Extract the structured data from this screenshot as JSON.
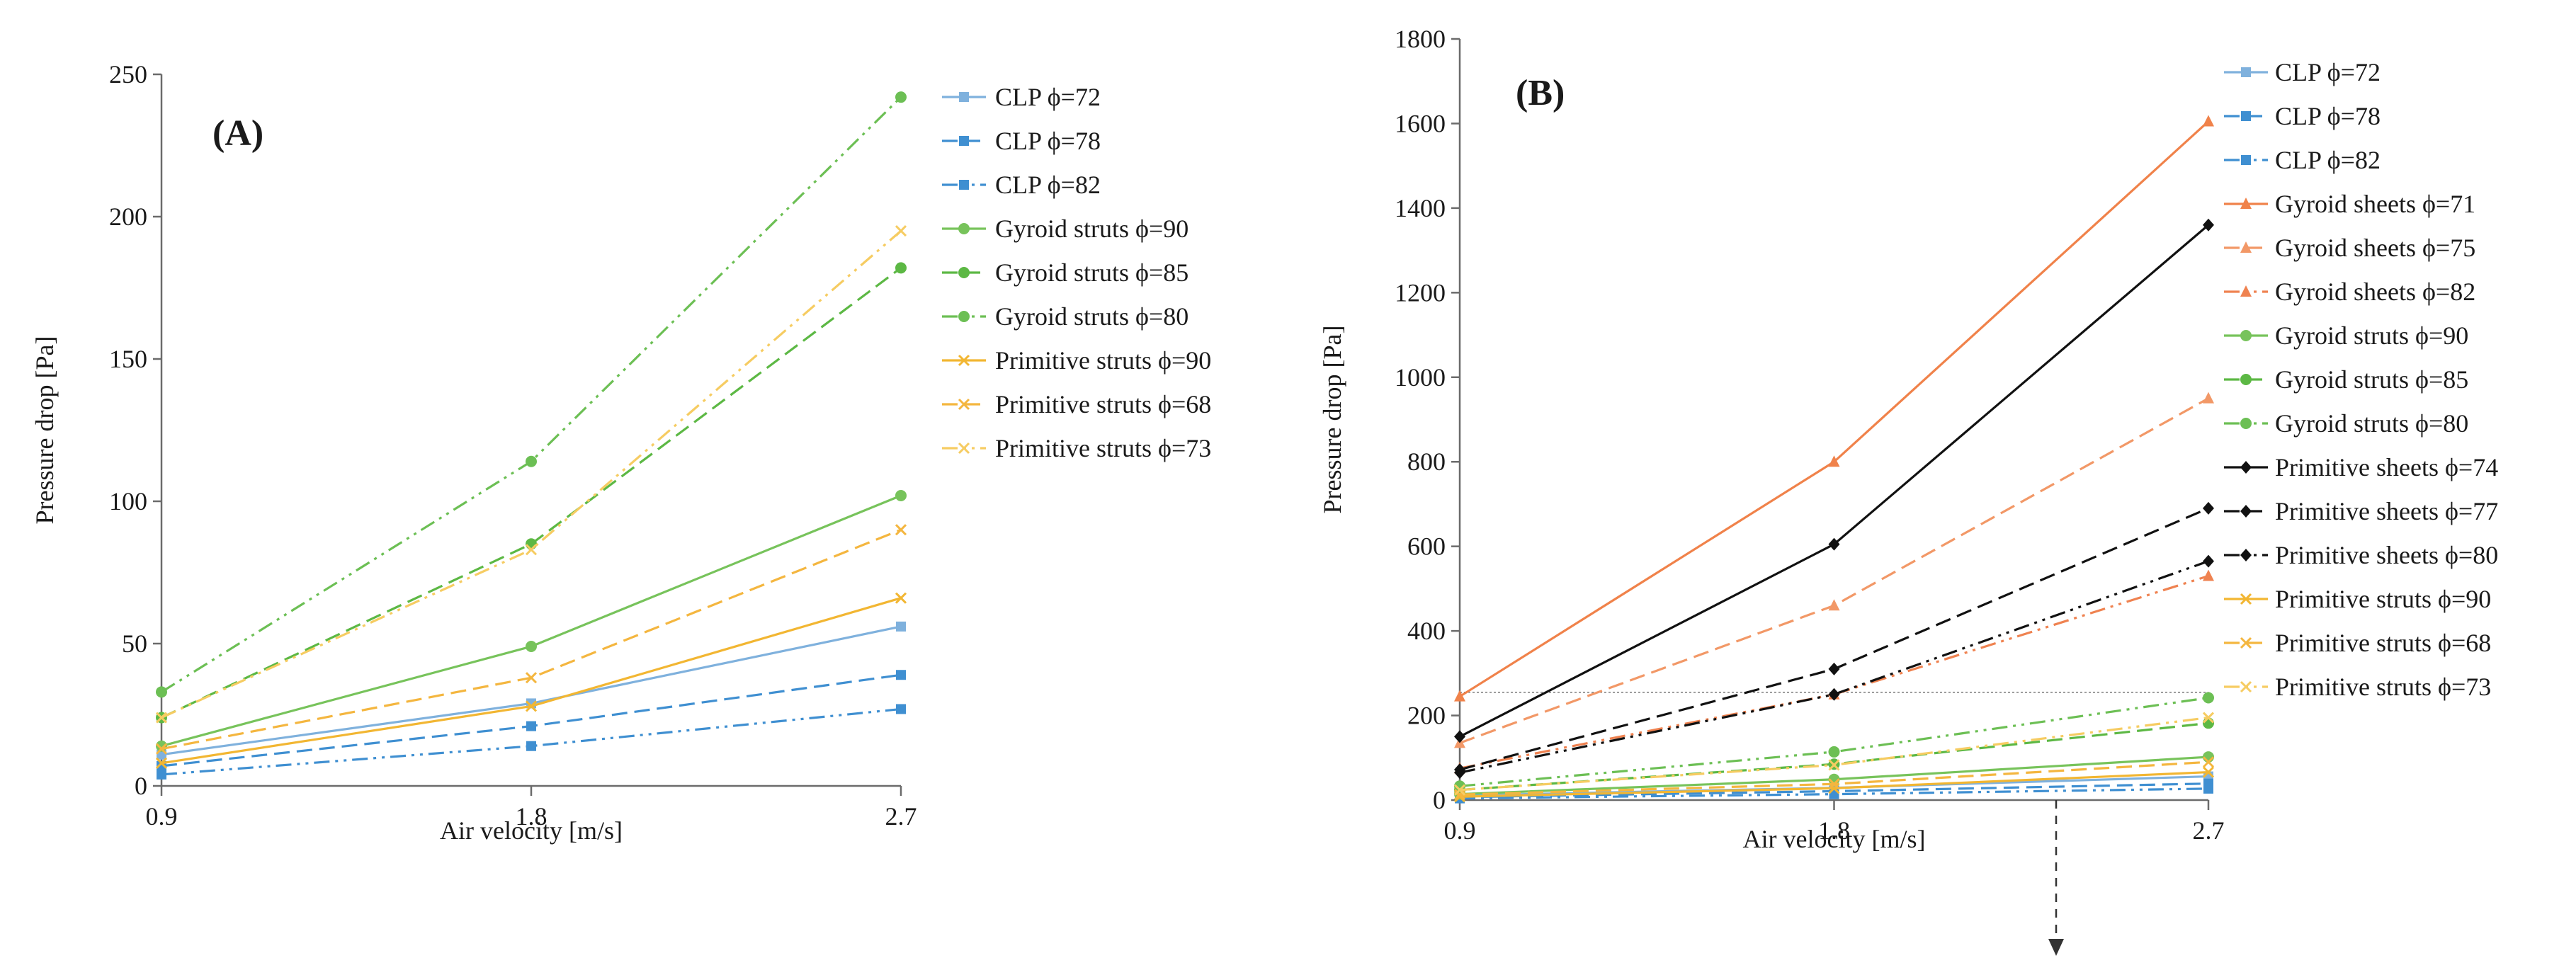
{
  "chart_data": [
    {
      "panel": "(A)",
      "type": "line",
      "xlabel": "Air velocity [m/s]",
      "ylabel": "Pressure drop [Pa]",
      "x": [
        0.9,
        1.8,
        2.7
      ],
      "x_ticks": [
        "0.9",
        "1.8",
        "2.7"
      ],
      "ylim": [
        0,
        250
      ],
      "y_ticks": [
        0,
        50,
        100,
        150,
        200,
        250
      ],
      "legend_position": "right",
      "series": [
        {
          "name": "CLP ϕ=72",
          "values": [
            11,
            29,
            56
          ],
          "color": "#7fb1dd",
          "dash": "solid",
          "marker": "square"
        },
        {
          "name": "CLP ϕ=78",
          "values": [
            7,
            21,
            39
          ],
          "color": "#3f8fd1",
          "dash": "dashed",
          "marker": "square"
        },
        {
          "name": "CLP ϕ=82",
          "values": [
            4,
            14,
            27
          ],
          "color": "#3f8fd1",
          "dash": "dashdotdot",
          "marker": "square"
        },
        {
          "name": "Gyroid struts ϕ=90",
          "values": [
            14,
            49,
            102
          ],
          "color": "#77c35b",
          "dash": "solid",
          "marker": "circle"
        },
        {
          "name": "Gyroid struts ϕ=85",
          "values": [
            24,
            85,
            182
          ],
          "color": "#5cb844",
          "dash": "dashed",
          "marker": "circle"
        },
        {
          "name": "Gyroid struts ϕ=80",
          "values": [
            33,
            114,
            242
          ],
          "color": "#6cbf54",
          "dash": "dashdotdot",
          "marker": "circle"
        },
        {
          "name": "Primitive struts ϕ=90",
          "values": [
            8,
            28,
            66
          ],
          "color": "#f2b632",
          "dash": "solid",
          "marker": "x"
        },
        {
          "name": "Primitive struts ϕ=68",
          "values": [
            13,
            38,
            90
          ],
          "color": "#f4b63f",
          "dash": "dashed",
          "marker": "x"
        },
        {
          "name": "Primitive struts ϕ=73",
          "values": [
            24,
            83,
            195
          ],
          "color": "#f6cc62",
          "dash": "dashdotdot",
          "marker": "x"
        }
      ]
    },
    {
      "panel": "(B)",
      "type": "line",
      "xlabel": "Air velocity [m/s]",
      "ylabel": "Pressure drop [Pa]",
      "x": [
        0.9,
        1.8,
        2.7
      ],
      "x_ticks": [
        "0.9",
        "1.8",
        "2.7"
      ],
      "ylim": [
        0,
        1800
      ],
      "y_ticks": [
        0,
        200,
        400,
        600,
        800,
        1000,
        1200,
        1400,
        1600,
        1800
      ],
      "reference_line_y": 255,
      "legend_position": "right",
      "series": [
        {
          "name": "CLP ϕ=72",
          "values": [
            11,
            29,
            56
          ],
          "color": "#7fb1dd",
          "dash": "solid",
          "marker": "square"
        },
        {
          "name": "CLP ϕ=78",
          "values": [
            7,
            21,
            39
          ],
          "color": "#3f8fd1",
          "dash": "dashed",
          "marker": "square"
        },
        {
          "name": "CLP ϕ=82",
          "values": [
            4,
            14,
            27
          ],
          "color": "#3f8fd1",
          "dash": "dashdotdot",
          "marker": "square"
        },
        {
          "name": "Gyroid sheets ϕ=71",
          "values": [
            245,
            800,
            1605
          ],
          "color": "#f0824a",
          "dash": "solid",
          "marker": "triangle"
        },
        {
          "name": "Gyroid sheets ϕ=75",
          "values": [
            135,
            460,
            950
          ],
          "color": "#f29867",
          "dash": "dashed",
          "marker": "triangle"
        },
        {
          "name": "Gyroid sheets ϕ=82",
          "values": [
            75,
            250,
            530
          ],
          "color": "#ef8250",
          "dash": "dashdotdot",
          "marker": "triangle"
        },
        {
          "name": "Gyroid struts ϕ=90",
          "values": [
            14,
            49,
            102
          ],
          "color": "#77c35b",
          "dash": "solid",
          "marker": "circle"
        },
        {
          "name": "Gyroid struts ϕ=85",
          "values": [
            24,
            85,
            182
          ],
          "color": "#5cb844",
          "dash": "dashed",
          "marker": "circle"
        },
        {
          "name": "Gyroid struts ϕ=80",
          "values": [
            33,
            114,
            242
          ],
          "color": "#6cbf54",
          "dash": "dashdotdot",
          "marker": "circle"
        },
        {
          "name": "Primitive sheets ϕ=74",
          "values": [
            150,
            605,
            1360
          ],
          "color": "#111111",
          "dash": "solid",
          "marker": "diamond"
        },
        {
          "name": "Primitive sheets ϕ=77",
          "values": [
            72,
            310,
            690
          ],
          "color": "#111111",
          "dash": "dashed",
          "marker": "diamond"
        },
        {
          "name": "Primitive sheets ϕ=80",
          "values": [
            65,
            250,
            565
          ],
          "color": "#111111",
          "dash": "dashdotdot",
          "marker": "diamond"
        },
        {
          "name": "Primitive struts ϕ=90",
          "values": [
            8,
            28,
            66
          ],
          "color": "#f2b632",
          "dash": "solid",
          "marker": "x"
        },
        {
          "name": "Primitive struts ϕ=68",
          "values": [
            13,
            38,
            90
          ],
          "color": "#f4b63f",
          "dash": "dashed",
          "marker": "x"
        },
        {
          "name": "Primitive struts ϕ=73",
          "values": [
            24,
            83,
            195
          ],
          "color": "#f6cc62",
          "dash": "dashdotdot",
          "marker": "x"
        }
      ]
    }
  ]
}
